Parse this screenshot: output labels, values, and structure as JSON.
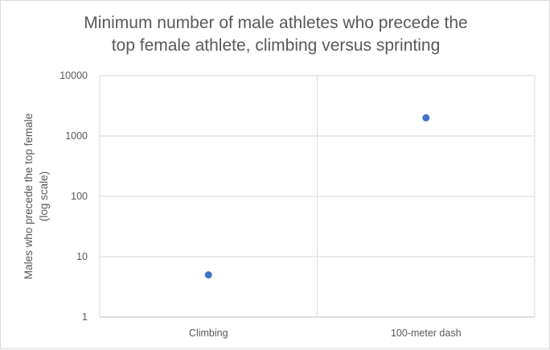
{
  "chart_data": {
    "type": "scatter",
    "title_lines": [
      "Minimum number of male athletes who precede  the",
      "top female athlete, climbing versus sprinting"
    ],
    "categories": [
      "Climbing",
      "100-meter dash"
    ],
    "values": [
      5,
      2000
    ],
    "ylabel_lines": [
      "Males who precede the top female",
      "(log scale)"
    ],
    "yscale": "log",
    "ylim": [
      1,
      10000
    ],
    "yticks": [
      "1",
      "10",
      "100",
      "1000",
      "10000"
    ],
    "grid": true,
    "legend": "none",
    "marker_color": "#4472c4"
  }
}
